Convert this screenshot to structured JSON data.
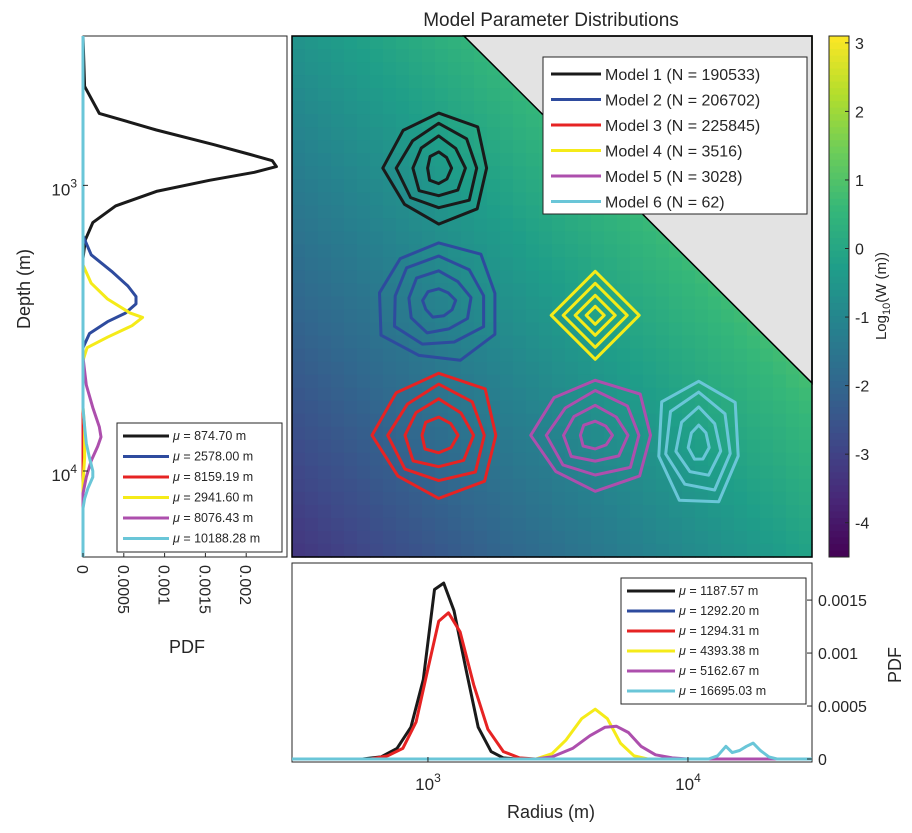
{
  "title": "Model Parameter Distributions",
  "chart_data": [
    {
      "id": "main",
      "type": "heatmap",
      "x_scale": "log",
      "y_scale": "log",
      "xlim": [
        300,
        30000
      ],
      "ylim": [
        300,
        20000
      ],
      "y_reversed": true,
      "colormap": "viridis",
      "colorbar": {
        "label_base": "Log",
        "label_sub": "10",
        "label_rest": "(W (m))",
        "range": [
          -4.5,
          3.1
        ],
        "ticks": [
          "3",
          "2",
          "1",
          "0",
          "-1",
          "-2",
          "-3",
          "-4"
        ]
      },
      "invalid_region_color": "#e3e3e3",
      "legend": {
        "position": "top-right",
        "entries": [
          {
            "label": "Model 1 (N = 190533)",
            "color": "#1a1a1a"
          },
          {
            "label": "Model 2 (N = 206702)",
            "color": "#2e4b9e"
          },
          {
            "label": "Model 3 (N = 225845)",
            "color": "#e62323"
          },
          {
            "label": "Model 4 (N = 3516)",
            "color": "#f5eb19"
          },
          {
            "label": "Model 5 (N = 3028)",
            "color": "#ad4fad"
          },
          {
            "label": "Model 6 (N = 62)",
            "color": "#6ac6d8"
          }
        ]
      },
      "contour_centers": [
        {
          "model": "Model 1",
          "radius": 1100,
          "depth": 870,
          "color": "#1a1a1a"
        },
        {
          "model": "Model 2",
          "radius": 1100,
          "depth": 2580,
          "color": "#2e4b9e"
        },
        {
          "model": "Model 3",
          "radius": 1100,
          "depth": 7500,
          "color": "#e62323"
        },
        {
          "model": "Model 4",
          "radius": 4400,
          "depth": 2850,
          "color": "#f5eb19"
        },
        {
          "model": "Model 5",
          "radius": 4400,
          "depth": 7500,
          "color": "#ad4fad"
        },
        {
          "model": "Model 6",
          "radius": 11000,
          "depth": 8000,
          "color": "#6ac6d8"
        }
      ]
    },
    {
      "id": "depth_pdf",
      "type": "line",
      "xlabel": "PDF",
      "ylabel": "Depth (m)",
      "y_scale": "log",
      "xlim": [
        0,
        0.0025
      ],
      "x_ticks": [
        "0",
        "0.0005",
        "0.001",
        "0.0015",
        "0.002"
      ],
      "y_ticks": [
        "10",
        "10"
      ],
      "y_tick_exponents": [
        "3",
        "4"
      ],
      "legend": {
        "position": "bottom-right",
        "entries": [
          {
            "label": "= 874.70 m",
            "color": "#1a1a1a"
          },
          {
            "label": "= 2578.00 m",
            "color": "#2e4b9e"
          },
          {
            "label": "= 8159.19 m",
            "color": "#e62323"
          },
          {
            "label": "= 2941.60 m",
            "color": "#f5eb19"
          },
          {
            "label": "= 8076.43 m",
            "color": "#ad4fad"
          },
          {
            "label": "= 10188.28 m",
            "color": "#6ac6d8"
          }
        ],
        "symbol": "μ"
      },
      "series": [
        {
          "color": "#1a1a1a",
          "depth": [
            300,
            450,
            560,
            640,
            720,
            780,
            820,
            860,
            900,
            960,
            1050,
            1180,
            1350,
            1550,
            1800,
            2500,
            20000
          ],
          "pdf": [
            0,
            2e-05,
            0.0002,
            0.0009,
            0.0016,
            0.00205,
            0.00232,
            0.00237,
            0.0021,
            0.00155,
            0.0009,
            0.0004,
            0.00012,
            3e-05,
            0,
            0,
            0
          ]
        },
        {
          "color": "#2e4b9e",
          "depth": [
            300,
            1500,
            1750,
            2000,
            2250,
            2450,
            2600,
            2800,
            3000,
            3300,
            3700,
            20000
          ],
          "pdf": [
            0,
            0,
            0.0001,
            0.00035,
            0.00055,
            0.00065,
            0.00065,
            0.00052,
            0.0003,
            8e-05,
            0,
            0
          ]
        },
        {
          "color": "#e62323",
          "depth": [
            300,
            20000
          ],
          "pdf": [
            0,
            0
          ]
        },
        {
          "color": "#f5eb19",
          "depth": [
            300,
            1900,
            2200,
            2500,
            2800,
            2900,
            3100,
            3400,
            3700,
            4100,
            6000,
            7000,
            9000,
            11000,
            12000,
            20000
          ],
          "pdf": [
            0,
            0,
            0.0001,
            0.0003,
            0.00058,
            0.00073,
            0.0006,
            0.0003,
            5e-05,
            0,
            0,
            2e-05,
            2e-05,
            0,
            0,
            0
          ]
        },
        {
          "color": "#ad4fad",
          "depth": [
            300,
            4000,
            5000,
            6000,
            7000,
            7600,
            8200,
            9200,
            10500,
            12000,
            20000
          ],
          "pdf": [
            0,
            0,
            4e-05,
            0.00012,
            0.0002,
            0.00022,
            0.00018,
            0.0001,
            4e-05,
            0,
            0
          ]
        },
        {
          "color": "#6ac6d8",
          "depth": [
            300,
            6000,
            7000,
            8000,
            9000,
            10000,
            10500,
            11500,
            12500,
            13500,
            20000
          ],
          "pdf": [
            0,
            0,
            2e-05,
            4e-05,
            8e-05,
            0.00012,
            0.00012,
            6e-05,
            2e-05,
            0,
            0
          ]
        }
      ]
    },
    {
      "id": "radius_pdf",
      "type": "line",
      "xlabel": "Radius (m)",
      "ylabel": "PDF",
      "x_scale": "log",
      "xlim": [
        300,
        30000
      ],
      "ylim": [
        0,
        0.00185
      ],
      "x_ticks": [
        "10",
        "10"
      ],
      "x_tick_exponents": [
        "3",
        "4"
      ],
      "y_ticks": [
        "0",
        "0.0005",
        "0.001",
        "0.0015"
      ],
      "legend": {
        "position": "top-right",
        "entries": [
          {
            "label": "= 1187.57 m",
            "color": "#1a1a1a"
          },
          {
            "label": "= 1292.20 m",
            "color": "#2e4b9e"
          },
          {
            "label": "= 1294.31 m",
            "color": "#e62323"
          },
          {
            "label": "= 4393.38 m",
            "color": "#f5eb19"
          },
          {
            "label": "= 5162.67 m",
            "color": "#ad4fad"
          },
          {
            "label": "= 16695.03 m",
            "color": "#6ac6d8"
          }
        ],
        "symbol": "μ"
      },
      "series": [
        {
          "color": "#2e4b9e",
          "x": [
            300,
            30000
          ],
          "pdf": [
            0,
            0
          ]
        },
        {
          "color": "#1a1a1a",
          "x": [
            300,
            560,
            660,
            760,
            860,
            960,
            1060,
            1150,
            1260,
            1400,
            1560,
            1750,
            1950,
            2200,
            30000
          ],
          "pdf": [
            0,
            0,
            2e-05,
            0.0001,
            0.0003,
            0.00075,
            0.0016,
            0.00166,
            0.0014,
            0.00085,
            0.0003,
            7e-05,
            1e-05,
            0,
            0
          ]
        },
        {
          "color": "#e62323",
          "x": [
            300,
            600,
            700,
            800,
            900,
            1000,
            1100,
            1200,
            1330,
            1500,
            1700,
            1950,
            2250,
            2600,
            30000
          ],
          "pdf": [
            0,
            0,
            3e-05,
            0.0001,
            0.00035,
            0.00085,
            0.0013,
            0.00138,
            0.0012,
            0.0007,
            0.00028,
            7e-05,
            1e-05,
            0,
            0
          ]
        },
        {
          "color": "#f5eb19",
          "x": [
            300,
            2600,
            3000,
            3400,
            3900,
            4400,
            4900,
            5500,
            6200,
            7000,
            30000
          ],
          "pdf": [
            0,
            0,
            5e-05,
            0.00018,
            0.00038,
            0.00047,
            0.00038,
            0.00015,
            3e-05,
            0,
            0
          ]
        },
        {
          "color": "#ad4fad",
          "x": [
            300,
            2600,
            3000,
            3600,
            4200,
            4800,
            5300,
            5900,
            6600,
            7500,
            8700,
            10000,
            30000
          ],
          "pdf": [
            0,
            0,
            2e-05,
            0.0001,
            0.00022,
            0.0003,
            0.00031,
            0.00025,
            0.00012,
            4e-05,
            1e-05,
            0,
            0
          ]
        },
        {
          "color": "#6ac6d8",
          "x": [
            300,
            12000,
            13000,
            14000,
            14800,
            15800,
            16800,
            17800,
            19000,
            20500,
            22000,
            30000
          ],
          "pdf": [
            0,
            0,
            3e-05,
            0.00012,
            6e-05,
            8e-05,
            0.00012,
            0.00015,
            8e-05,
            2e-05,
            0,
            0
          ]
        }
      ]
    }
  ]
}
